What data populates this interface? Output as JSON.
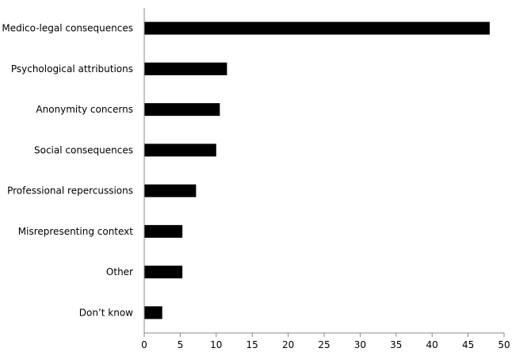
{
  "chart_data": {
    "type": "bar",
    "orientation": "horizontal",
    "title": "",
    "xlabel": "",
    "ylabel": "",
    "categories": [
      "Medico-legal consequences",
      "Psychological attributions",
      "Anonymity concerns",
      "Social consequences",
      "Professional repercussions",
      "Misrepresenting context",
      "Other",
      "Don’t know"
    ],
    "values": [
      48,
      11.5,
      10.5,
      10,
      7.2,
      5.3,
      5.3,
      2.5
    ],
    "xlim": [
      0,
      50
    ],
    "xticks": [
      "0",
      "5",
      "10",
      "15",
      "20",
      "25",
      "30",
      "35",
      "40",
      "45",
      "50"
    ],
    "grid": false,
    "legend": "none",
    "bar_color": "#000000"
  }
}
